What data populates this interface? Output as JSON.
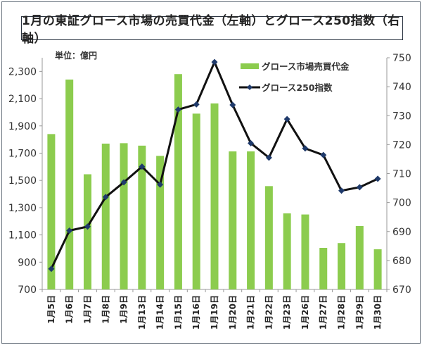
{
  "chart_data": {
    "type": "bar+line",
    "title": "1月の東証グロース市場の売買代金（左軸）とグロース250指数（右軸）",
    "unit_label": "単位：億円",
    "categories": [
      "1月5日",
      "1月6日",
      "1月7日",
      "1月8日",
      "1月9日",
      "1月13日",
      "1月14日",
      "1月15日",
      "1月16日",
      "1月19日",
      "1月20日",
      "1月21日",
      "1月22日",
      "1月23日",
      "1月26日",
      "1月27日",
      "1月28日",
      "1月29日",
      "1月30日"
    ],
    "series": [
      {
        "name": "グロース市場売買代金",
        "type": "bar",
        "axis": "left",
        "color": "#8ccc4e",
        "values": [
          1840,
          2240,
          1545,
          1770,
          1773,
          1755,
          1680,
          2280,
          1990,
          2065,
          1713,
          1713,
          1458,
          1258,
          1250,
          1005,
          1040,
          1165,
          995
        ]
      },
      {
        "name": "グロース250指数",
        "type": "line",
        "axis": "right",
        "color": "#111111",
        "marker_color": "#1f3a6b",
        "values": [
          677.1,
          690.3,
          691.7,
          701.9,
          707.0,
          712.4,
          706.2,
          732.1,
          733.9,
          748.5,
          733.7,
          720.5,
          715.5,
          728.8,
          718.7,
          716.4,
          704.1,
          705.3,
          708.2
        ]
      }
    ],
    "left_axis": {
      "ylim": [
        700,
        2400
      ],
      "ticks": [
        700,
        900,
        1100,
        1300,
        1500,
        1700,
        1900,
        2100,
        2300
      ],
      "tick_labels": [
        "700",
        "900",
        "1,100",
        "1,300",
        "1,500",
        "1,700",
        "1,900",
        "2,100",
        "2,300"
      ]
    },
    "right_axis": {
      "ylim": [
        670,
        750
      ],
      "ticks": [
        670,
        680,
        690,
        700,
        710,
        720,
        730,
        740,
        750
      ],
      "tick_labels": [
        "670",
        "680",
        "690",
        "700",
        "710",
        "720",
        "730",
        "740",
        "750"
      ]
    },
    "grid": false,
    "legend": "top-right"
  }
}
